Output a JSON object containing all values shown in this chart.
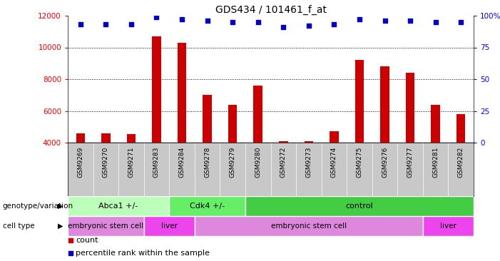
{
  "title": "GDS434 / 101461_f_at",
  "samples": [
    "GSM9269",
    "GSM9270",
    "GSM9271",
    "GSM9283",
    "GSM9284",
    "GSM9278",
    "GSM9279",
    "GSM9280",
    "GSM9272",
    "GSM9273",
    "GSM9274",
    "GSM9275",
    "GSM9276",
    "GSM9277",
    "GSM9281",
    "GSM9282"
  ],
  "counts": [
    4600,
    4600,
    4550,
    10700,
    10300,
    7000,
    6400,
    7600,
    4100,
    4100,
    4700,
    9200,
    8800,
    8400,
    6400,
    5800
  ],
  "percentiles": [
    93,
    93,
    93,
    99,
    97,
    96,
    95,
    95,
    91,
    92,
    93,
    97,
    96,
    96,
    95,
    95
  ],
  "ylim_left": [
    4000,
    12000
  ],
  "ylim_right": [
    0,
    100
  ],
  "bar_color": "#cc0000",
  "dot_color": "#0000cc",
  "bar_bottom": 4000,
  "tick_bg_color": "#c8c8c8",
  "genotype_groups": [
    {
      "label": "Abca1 +/-",
      "start": 0,
      "end": 4,
      "color": "#bbffbb"
    },
    {
      "label": "Cdk4 +/-",
      "start": 4,
      "end": 7,
      "color": "#66ee66"
    },
    {
      "label": "control",
      "start": 7,
      "end": 16,
      "color": "#44cc44"
    }
  ],
  "celltype_groups": [
    {
      "label": "embryonic stem cell",
      "start": 0,
      "end": 3,
      "color": "#dd88dd"
    },
    {
      "label": "liver",
      "start": 3,
      "end": 5,
      "color": "#ee44ee"
    },
    {
      "label": "embryonic stem cell",
      "start": 5,
      "end": 14,
      "color": "#dd88dd"
    },
    {
      "label": "liver",
      "start": 14,
      "end": 16,
      "color": "#ee44ee"
    }
  ],
  "row_labels": [
    "genotype/variation",
    "cell type"
  ],
  "legend_items": [
    {
      "label": "count",
      "color": "#cc0000"
    },
    {
      "label": "percentile rank within the sample",
      "color": "#0000cc"
    }
  ],
  "fig_width": 7.01,
  "fig_height": 3.66,
  "dpi": 100
}
